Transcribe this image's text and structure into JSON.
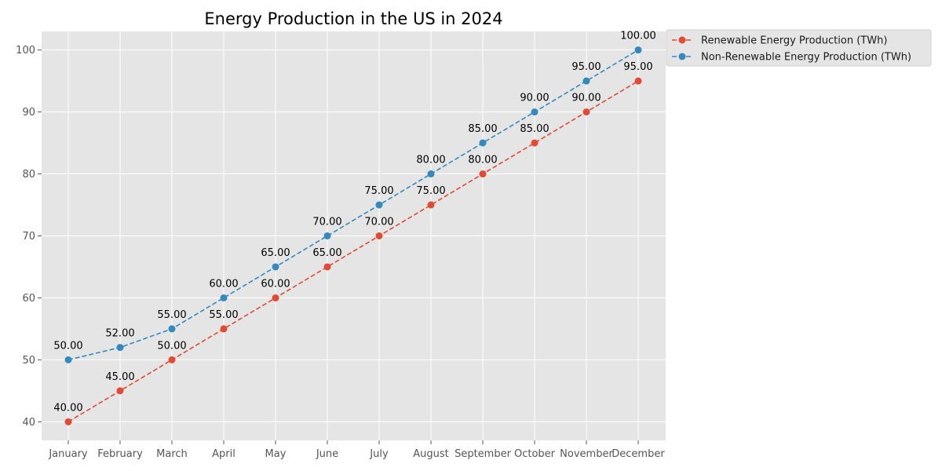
{
  "chart_data": {
    "type": "line",
    "title": "Energy Production in the US in 2024",
    "xlabel": "",
    "ylabel": "",
    "categories": [
      "January",
      "February",
      "March",
      "April",
      "May",
      "June",
      "July",
      "August",
      "September",
      "October",
      "November",
      "December"
    ],
    "ylim": [
      37,
      103
    ],
    "yticks": [
      40,
      50,
      60,
      70,
      80,
      90,
      100
    ],
    "grid": true,
    "legend_position": "outside-top-right",
    "series": [
      {
        "name": "Renewable Energy Production (TWh)",
        "color": "#e24a33",
        "line_style": "dashed",
        "marker": "circle",
        "values": [
          40,
          45,
          50,
          55,
          60,
          65,
          70,
          75,
          80,
          85,
          90,
          95
        ],
        "labels": [
          "40.00",
          "45.00",
          "50.00",
          "55.00",
          "60.00",
          "65.00",
          "70.00",
          "75.00",
          "80.00",
          "85.00",
          "90.00",
          "95.00"
        ]
      },
      {
        "name": "Non-Renewable Energy Production (TWh)",
        "color": "#348abd",
        "line_style": "dashed",
        "marker": "circle",
        "values": [
          50,
          52,
          55,
          60,
          65,
          70,
          75,
          80,
          85,
          90,
          95,
          100
        ],
        "labels": [
          "50.00",
          "52.00",
          "55.00",
          "60.00",
          "65.00",
          "70.00",
          "75.00",
          "80.00",
          "85.00",
          "90.00",
          "95.00",
          "100.00"
        ]
      }
    ]
  }
}
